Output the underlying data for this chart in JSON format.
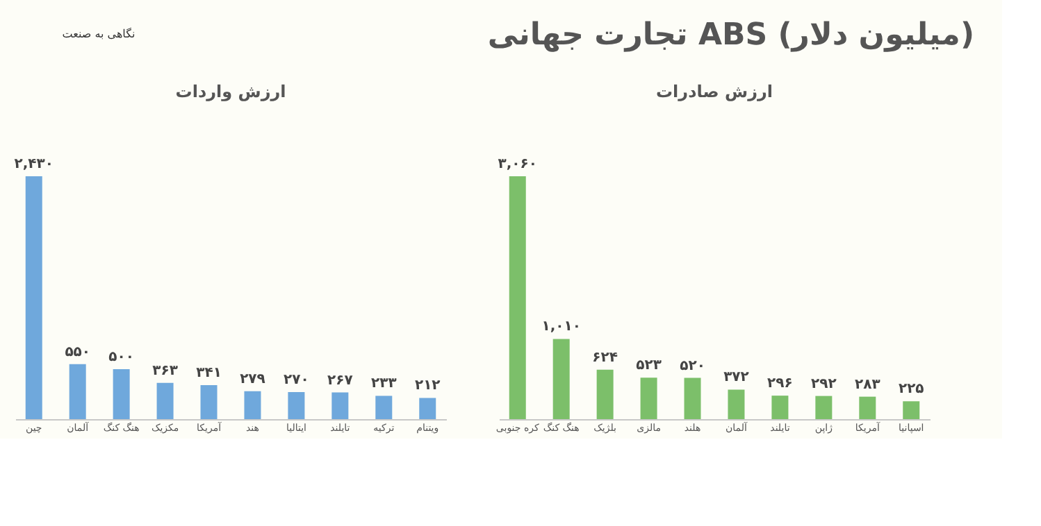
{
  "chart_data": [
    {
      "type": "bar",
      "title": "ارزش واردات",
      "annotations": [
        "تجارت جهانی ABS (میلیون دلار)",
        "نگاهی به صنعت"
      ],
      "categories": [
        "چین",
        "آلمان",
        "هنگ کنگ",
        "مکزیک",
        "آمریکا",
        "هند",
        "ایتالیا",
        "تایلند",
        "ترکیه",
        "ویتنام"
      ],
      "values": [
        2430,
        550,
        500,
        363,
        341,
        279,
        270,
        267,
        233,
        212
      ],
      "value_labels": [
        "۲,۴۳۰",
        "۵۵۰",
        "۵۰۰",
        "۳۶۳",
        "۳۴۱",
        "۲۷۹",
        "۲۷۰",
        "۲۶۷",
        "۲۳۳",
        "۲۱۲"
      ],
      "color": "#6fa8dc",
      "tick_labels": "x",
      "grid": false
    },
    {
      "type": "bar",
      "title": "ارزش صادرات",
      "categories": [
        "کره جنوبی",
        "هنگ کنگ",
        "بلژیک",
        "مالزی",
        "هلند",
        "آلمان",
        "تایلند",
        "ژاپن",
        "آمریکا",
        "اسپانیا"
      ],
      "values": [
        3060,
        1010,
        624,
        523,
        520,
        372,
        296,
        292,
        283,
        225
      ],
      "value_labels": [
        "۳,۰۶۰",
        "۱,۰۱۰",
        "۶۲۴",
        "۵۲۳",
        "۵۲۰",
        "۳۷۲",
        "۲۹۶",
        "۲۹۲",
        "۲۸۳",
        "۲۲۵"
      ],
      "color": "#7cbf6a",
      "tick_labels": "x",
      "grid": false
    }
  ]
}
